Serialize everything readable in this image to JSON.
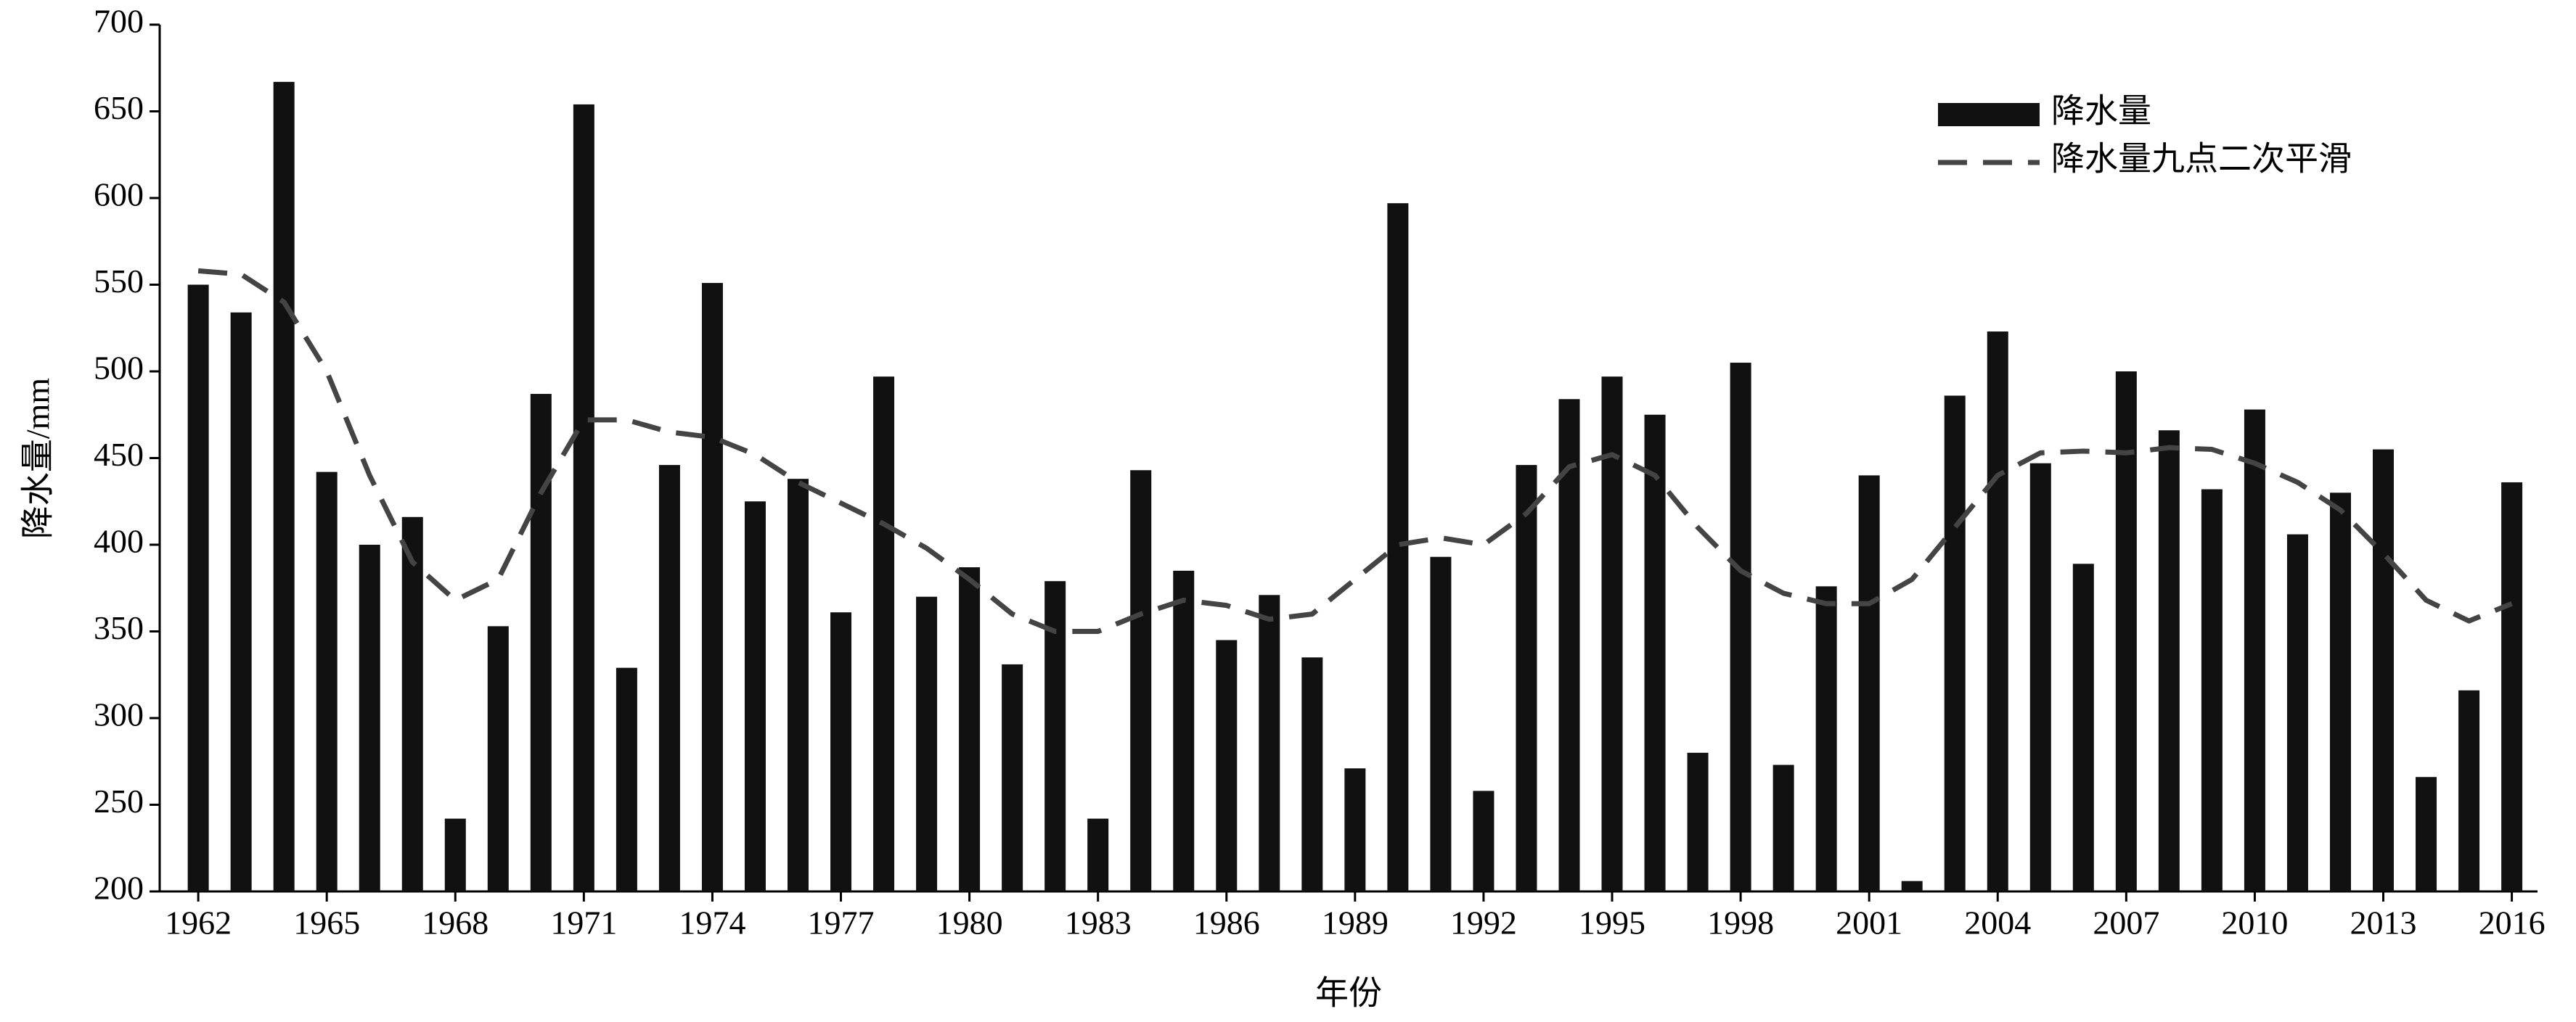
{
  "chart_data": {
    "type": "bar",
    "x_label": "年份",
    "y_label": "降水量/mm",
    "x": [
      1962,
      1963,
      1964,
      1965,
      1966,
      1967,
      1968,
      1969,
      1970,
      1971,
      1972,
      1973,
      1974,
      1975,
      1976,
      1977,
      1978,
      1979,
      1980,
      1981,
      1982,
      1983,
      1984,
      1985,
      1986,
      1987,
      1988,
      1989,
      1990,
      1991,
      1992,
      1993,
      1994,
      1995,
      1996,
      1997,
      1998,
      1999,
      2000,
      2001,
      2002,
      2003,
      2004,
      2005,
      2006,
      2007,
      2008,
      2009,
      2010,
      2011,
      2012,
      2013,
      2014,
      2015,
      2016
    ],
    "series": [
      {
        "name": "降水量",
        "type": "bar",
        "color": "#111111",
        "values": [
          550,
          534,
          667,
          442,
          400,
          416,
          242,
          353,
          487,
          654,
          329,
          446,
          551,
          425,
          438,
          361,
          497,
          370,
          387,
          331,
          379,
          242,
          443,
          385,
          345,
          371,
          335,
          271,
          597,
          393,
          258,
          446,
          484,
          497,
          475,
          280,
          505,
          273,
          376,
          440,
          206,
          486,
          523,
          447,
          389,
          500,
          466,
          432,
          478,
          406,
          430,
          455,
          266,
          316,
          436
        ]
      },
      {
        "name": "降水量九点二次平滑",
        "type": "line",
        "color": "#444444",
        "dashed": true,
        "values": [
          558,
          556,
          540,
          500,
          440,
          390,
          368,
          380,
          430,
          472,
          472,
          465,
          462,
          452,
          436,
          424,
          412,
          398,
          380,
          360,
          350,
          350,
          360,
          368,
          365,
          357,
          360,
          380,
          400,
          404,
          400,
          418,
          445,
          452,
          440,
          410,
          385,
          372,
          366,
          366,
          380,
          410,
          440,
          453,
          454,
          453,
          456,
          455,
          447,
          436,
          420,
          395,
          368,
          356,
          366
        ]
      }
    ],
    "xlim": [
      1961.1,
      2016.6
    ],
    "xticks": [
      1962,
      1965,
      1968,
      1971,
      1974,
      1977,
      1980,
      1983,
      1986,
      1989,
      1992,
      1995,
      1998,
      2001,
      2004,
      2007,
      2010,
      2013,
      2016
    ],
    "ylim": [
      200,
      700
    ],
    "yticks": [
      200,
      250,
      300,
      350,
      400,
      450,
      500,
      550,
      600,
      650,
      700
    ],
    "legend": "upper-right",
    "grid": false
  }
}
